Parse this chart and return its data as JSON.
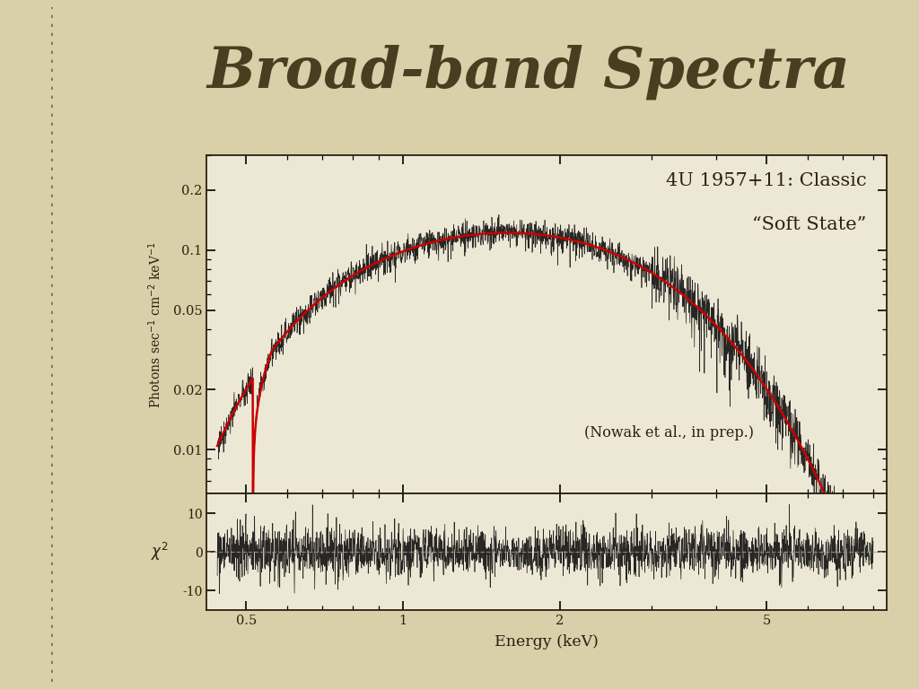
{
  "title": "Broad-band Spectra",
  "subtitle_line1": "4U 1957+11: Classic",
  "subtitle_line2": "“Soft State”",
  "annotation": "(Nowak et al., in prep.)",
  "xlabel": "Energy (keV)",
  "ylabel": "Photons sec⁻¹ cm⁻² keV⁻¹",
  "background_color": "#d9cfa8",
  "plot_bg_color": "#ede8d5",
  "title_color": "#4a3e20",
  "text_color": "#2a2010",
  "axis_label_color": "#2a2010",
  "xmin": 0.42,
  "xmax": 8.5,
  "ymin": 0.006,
  "ymax": 0.3,
  "y2min": -15,
  "y2max": 15,
  "red_line_color": "#cc0000",
  "data_line_color": "#111111",
  "dashed_line_color": "#999999",
  "yticks": [
    0.01,
    0.02,
    0.05,
    0.1,
    0.2
  ],
  "ytick_labels": [
    "0.01",
    "0.02",
    "0.05",
    "0.1",
    "0.2"
  ],
  "xticks": [
    0.5,
    1,
    2,
    5
  ],
  "xtick_labels": [
    "0.5",
    "1",
    "2",
    "5"
  ],
  "y2ticks": [
    -10,
    0,
    10
  ],
  "y2tick_labels": [
    "-10",
    "0",
    "10"
  ]
}
